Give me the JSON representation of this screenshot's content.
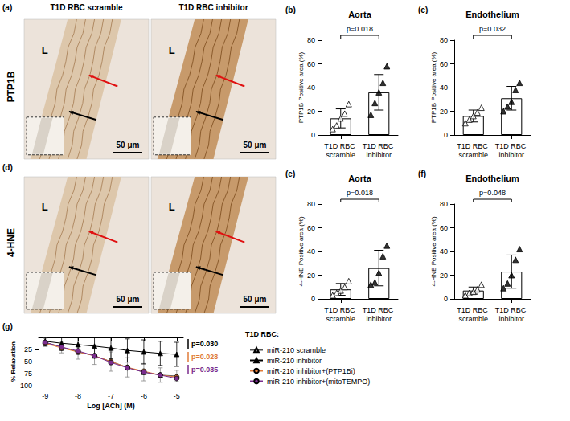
{
  "micrographs": {
    "columns": [
      "T1D RBC scramble",
      "T1D RBC inhibitor"
    ],
    "rows": [
      {
        "panel_label": "(a)",
        "stain": "PTP1B"
      },
      {
        "panel_label": "(d)",
        "stain": "4-HNE"
      }
    ],
    "lumen_label": "L",
    "scale_bar": "50 μm"
  },
  "chart_data": [
    {
      "panel_label": "(b)",
      "type": "bar",
      "title": "Aorta",
      "y_label": "PTP1B Positive area (%)",
      "categories": [
        "T1D RBC scramble",
        "T1D RBC inhibitor"
      ],
      "values": [
        14,
        36
      ],
      "errors": [
        8,
        15
      ],
      "color": "#ffffff",
      "points": [
        {
          "color": "#ffffff",
          "marker": "triangle",
          "values": [
            5,
            8,
            14,
            18,
            26
          ]
        },
        {
          "color": "#000000",
          "marker": "triangle",
          "values": [
            17,
            27,
            36,
            44,
            58
          ]
        }
      ],
      "annotations": [
        "p=0.018"
      ],
      "ylim": [
        0,
        80
      ],
      "yticks": [
        0,
        20,
        40,
        60,
        80
      ],
      "grid": false
    },
    {
      "panel_label": "(c)",
      "type": "bar",
      "title": "Endothelium",
      "y_label": "PTP1B Positive area (%)",
      "categories": [
        "T1D RBC scramble",
        "T1D RBC inhibitor"
      ],
      "values": [
        16,
        31
      ],
      "errors": [
        5,
        10
      ],
      "color": "#ffffff",
      "points": [
        {
          "color": "#ffffff",
          "marker": "triangle",
          "values": [
            10,
            13,
            16,
            19,
            23
          ]
        },
        {
          "color": "#000000",
          "marker": "triangle",
          "values": [
            20,
            24,
            28,
            38,
            44
          ]
        }
      ],
      "annotations": [
        "p=0.032"
      ],
      "ylim": [
        0,
        80
      ],
      "yticks": [
        0,
        20,
        40,
        60,
        80
      ],
      "grid": false
    },
    {
      "panel_label": "(e)",
      "type": "bar",
      "title": "Aorta",
      "y_label": "4-HNE Positive area (%)",
      "categories": [
        "T1D RBC scramble",
        "T1D RBC inhibitor"
      ],
      "values": [
        8,
        26
      ],
      "errors": [
        5,
        15
      ],
      "color": "#ffffff",
      "points": [
        {
          "color": "#ffffff",
          "marker": "triangle",
          "values": [
            3,
            5,
            7,
            10,
            15
          ]
        },
        {
          "color": "#000000",
          "marker": "triangle",
          "values": [
            12,
            14,
            22,
            36,
            45
          ]
        }
      ],
      "annotations": [
        "p=0.018"
      ],
      "ylim": [
        0,
        80
      ],
      "yticks": [
        0,
        20,
        40,
        60,
        80
      ],
      "grid": false
    },
    {
      "panel_label": "(f)",
      "type": "bar",
      "title": "Endothelium",
      "y_label": "4-HNE Positive area (%)",
      "categories": [
        "T1D RBC scramble",
        "T1D RBC inhibitor"
      ],
      "values": [
        7,
        23
      ],
      "errors": [
        3,
        14
      ],
      "color": "#ffffff",
      "points": [
        {
          "color": "#ffffff",
          "marker": "triangle",
          "values": [
            3,
            5,
            6,
            8,
            12
          ]
        },
        {
          "color": "#000000",
          "marker": "triangle",
          "values": [
            9,
            13,
            20,
            33,
            42
          ]
        }
      ],
      "annotations": [
        "p=0.048"
      ],
      "ylim": [
        0,
        80
      ],
      "yticks": [
        0,
        20,
        40,
        60,
        80
      ],
      "grid": false
    },
    {
      "panel_label": "(g)",
      "type": "line",
      "x_label": "Log [ACh] (M)",
      "y_label": "% Relaxation",
      "x": [
        -9,
        -8.5,
        -8,
        -7.5,
        -7,
        -6.5,
        -6,
        -5.5,
        -5
      ],
      "series": [
        {
          "name": "miR-210 scramble",
          "color": "#aaaaaa",
          "marker": "triangle",
          "values": [
            10,
            20,
            30,
            38,
            50,
            62,
            72,
            78,
            80
          ],
          "errors": [
            8,
            12,
            15,
            18,
            20,
            20,
            18,
            15,
            12
          ]
        },
        {
          "name": "miR-210 inhibitor",
          "color": "#000000",
          "marker": "triangle",
          "values": [
            8,
            12,
            15,
            18,
            22,
            27,
            30,
            33,
            35
          ],
          "errors": [
            10,
            15,
            18,
            20,
            22,
            24,
            25,
            25,
            25
          ]
        },
        {
          "name": "miR-210 inhibitor+(PTP1Bi)",
          "color": "#e07b39",
          "marker": "circle",
          "values": [
            12,
            22,
            30,
            38,
            50,
            62,
            70,
            78,
            82
          ]
        },
        {
          "name": "miR-210 inhibitor+(mitoTEMPO)",
          "color": "#7b2d8e",
          "marker": "circle",
          "values": [
            10,
            20,
            28,
            38,
            52,
            63,
            72,
            78,
            85
          ]
        }
      ],
      "xlim": [
        -9.2,
        -4.8
      ],
      "xticks": [
        -9,
        -8,
        -7,
        -6,
        -5
      ],
      "ylim": [
        0,
        100
      ],
      "yticks": [
        25,
        50,
        75,
        100
      ],
      "legend": "right",
      "legend_title": "T1D RBC:",
      "annotations": [
        {
          "text": "p=0.030",
          "color": "#000000"
        },
        {
          "text": "p=0.028",
          "color": "#e07b39"
        },
        {
          "text": "p=0.035",
          "color": "#7b2d8e"
        }
      ],
      "grid": false
    }
  ]
}
